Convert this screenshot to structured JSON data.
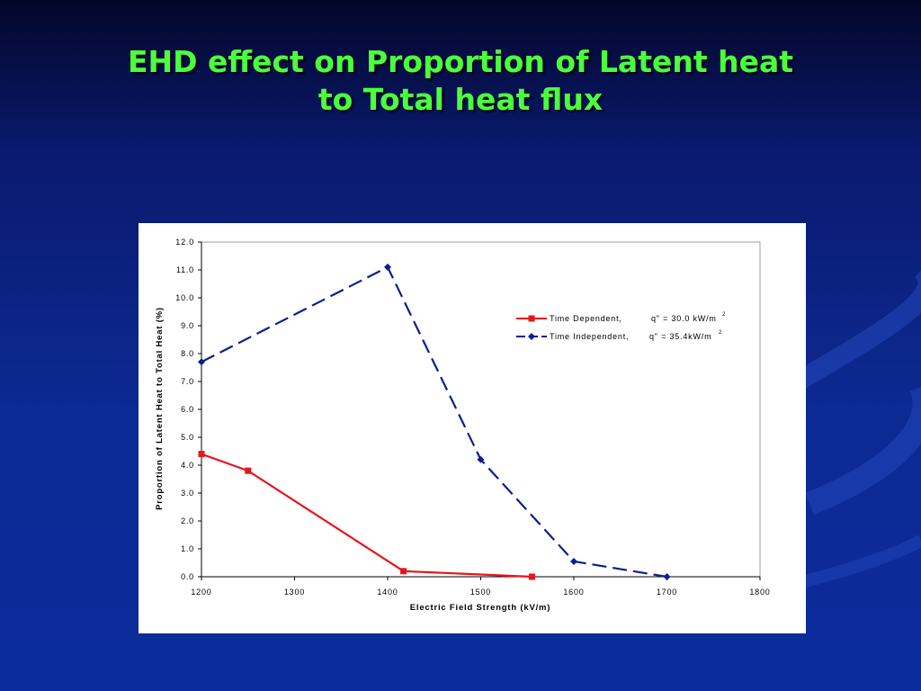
{
  "slide": {
    "title_line1": "EHD effect on Proportion of Latent heat",
    "title_line2": "to Total heat flux"
  },
  "colors": {
    "background": "#0b2c9c",
    "title": "#4cff3c",
    "series_dependent": "#e8141a",
    "series_independent": "#0a1f8f"
  },
  "chart_data": {
    "type": "line",
    "xlabel": "Electric Field Strength (kV/m)",
    "ylabel": "Proportion of Latent Heat to Total Heat (%)",
    "xlim": [
      1200,
      1800
    ],
    "ylim": [
      0,
      12
    ],
    "x_ticks": [
      "1200",
      "1300",
      "1400",
      "1500",
      "1600",
      "1700",
      "1800"
    ],
    "y_ticks": [
      "0.0",
      "1.0",
      "2.0",
      "3.0",
      "4.0",
      "5.0",
      "6.0",
      "7.0",
      "8.0",
      "9.0",
      "10.0",
      "11.0",
      "12.0"
    ],
    "grid": false,
    "legend_position": "top-right",
    "series": [
      {
        "name": "Time Dependent,",
        "condition": "q\" = 30.0 kW/m",
        "superscript": "2",
        "color": "#e8141a",
        "marker": "square",
        "dash": "solid",
        "points": [
          [
            1200,
            4.4
          ],
          [
            1250,
            3.8
          ],
          [
            1417,
            0.2
          ],
          [
            1555,
            0.0
          ]
        ]
      },
      {
        "name": "Time Independent,",
        "condition": "q\" = 35.4kW/m",
        "superscript": "2",
        "color": "#0a1f8f",
        "marker": "diamond",
        "dash": "dashed",
        "points": [
          [
            1200,
            7.7
          ],
          [
            1400,
            11.1
          ],
          [
            1500,
            4.2
          ],
          [
            1600,
            0.55
          ],
          [
            1700,
            0.0
          ]
        ]
      }
    ]
  }
}
